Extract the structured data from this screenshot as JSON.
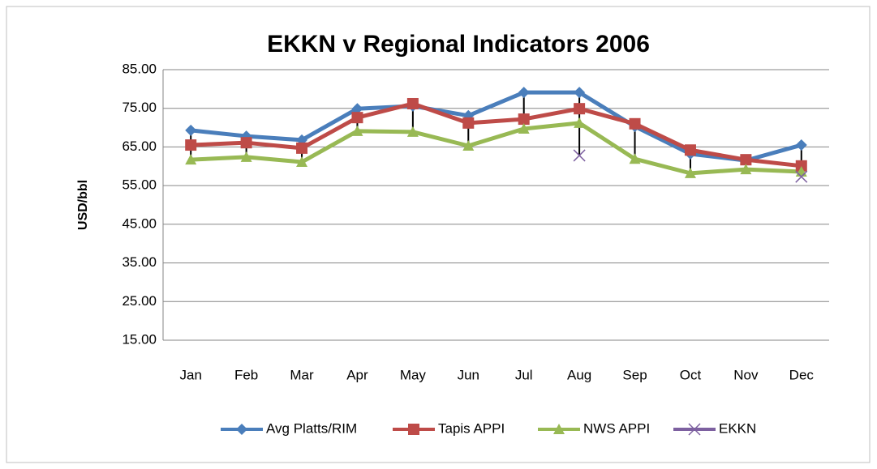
{
  "chart_data": {
    "type": "line",
    "title": "EKKN v Regional Indicators  2006",
    "y_label": "USD/bbl",
    "categories": [
      "Jan",
      "Feb",
      "Mar",
      "Apr",
      "May",
      "Jun",
      "Jul",
      "Aug",
      "Sep",
      "Oct",
      "Nov",
      "Dec"
    ],
    "series": [
      {
        "name": "Avg Platts/RIM",
        "color": "#4a7ebb",
        "marker": "diamond",
        "values": [
          69.3,
          67.8,
          66.8,
          74.9,
          75.6,
          73.1,
          79.1,
          79.1,
          70.3,
          63.2,
          61.5,
          65.5
        ]
      },
      {
        "name": "Tapis APPI",
        "color": "#be4b48",
        "marker": "square",
        "values": [
          65.5,
          66.1,
          64.7,
          72.6,
          76.2,
          71.2,
          72.2,
          74.9,
          71.0,
          64.2,
          61.7,
          60.1
        ]
      },
      {
        "name": "NWS APPI",
        "color": "#98b954",
        "marker": "triangle",
        "values": [
          61.7,
          62.4,
          61.1,
          69.1,
          68.9,
          65.3,
          69.7,
          71.2,
          61.9,
          58.2,
          59.2,
          58.6
        ]
      },
      {
        "name": "EKKN",
        "color": "#7d60a0",
        "marker": "x",
        "values": [
          null,
          null,
          null,
          null,
          null,
          null,
          null,
          62.8,
          null,
          null,
          null,
          57.3
        ]
      }
    ],
    "high_low_lines": true,
    "ylim": [
      15,
      85
    ],
    "yticks": [
      {
        "value": 15,
        "label": "15.00"
      },
      {
        "value": 25,
        "label": "25.00"
      },
      {
        "value": 35,
        "label": "35.00"
      },
      {
        "value": 45,
        "label": "45.00"
      },
      {
        "value": 55,
        "label": "55.00"
      },
      {
        "value": 65,
        "label": "65.00"
      },
      {
        "value": 75,
        "label": "75.00"
      },
      {
        "value": 85,
        "label": "85.00"
      }
    ],
    "grid": true,
    "legend": "bottom"
  }
}
